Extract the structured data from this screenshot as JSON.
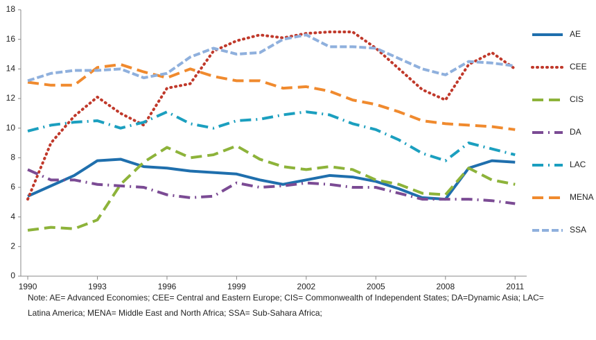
{
  "chart_data": {
    "type": "line",
    "x": [
      1990,
      1991,
      1992,
      1993,
      1994,
      1995,
      1996,
      1997,
      1998,
      1999,
      2000,
      2001,
      2002,
      2003,
      2004,
      2005,
      2006,
      2007,
      2008,
      2009,
      2010,
      2011
    ],
    "series": [
      {
        "name": "AE",
        "color": "#1f6fad",
        "dash": "solid",
        "values": [
          5.4,
          6.1,
          6.8,
          7.8,
          7.9,
          7.4,
          7.3,
          7.1,
          7.0,
          6.9,
          6.5,
          6.2,
          6.5,
          6.8,
          6.7,
          6.4,
          5.9,
          5.3,
          5.2,
          7.3,
          7.8,
          7.7
        ]
      },
      {
        "name": "CEE",
        "color": "#c0392b",
        "dash": "dotted",
        "values": [
          5.2,
          9.0,
          10.8,
          12.1,
          11.0,
          10.2,
          12.7,
          13.0,
          15.2,
          15.9,
          16.3,
          16.1,
          16.4,
          16.5,
          16.5,
          15.4,
          14.0,
          12.6,
          11.9,
          14.3,
          15.1,
          14.0
        ]
      },
      {
        "name": "CIS",
        "color": "#8db33a",
        "dash": "dashed",
        "values": [
          3.1,
          3.3,
          3.2,
          3.8,
          6.2,
          7.7,
          8.7,
          8.0,
          8.2,
          8.8,
          7.9,
          7.4,
          7.2,
          7.4,
          7.2,
          6.5,
          6.2,
          5.6,
          5.5,
          7.3,
          6.5,
          6.2
        ]
      },
      {
        "name": "DA",
        "color": "#7b4b94",
        "dash": "dashdot",
        "values": [
          7.2,
          6.5,
          6.5,
          6.2,
          6.1,
          6.0,
          5.5,
          5.3,
          5.4,
          6.3,
          6.0,
          6.1,
          6.3,
          6.2,
          6.0,
          6.0,
          5.6,
          5.2,
          5.2,
          5.2,
          5.1,
          4.9
        ]
      },
      {
        "name": "LAC",
        "color": "#1b9fbf",
        "dash": "dashdot",
        "values": [
          9.8,
          10.2,
          10.4,
          10.5,
          10.0,
          10.4,
          11.1,
          10.3,
          10.0,
          10.5,
          10.6,
          10.9,
          11.1,
          10.9,
          10.3,
          9.9,
          9.2,
          8.3,
          7.8,
          9.0,
          8.6,
          8.2
        ]
      },
      {
        "name": "MENA",
        "color": "#f08a2e",
        "dash": "dashed",
        "values": [
          13.1,
          12.9,
          12.9,
          14.1,
          14.3,
          13.8,
          13.4,
          14.0,
          13.5,
          13.2,
          13.2,
          12.7,
          12.8,
          12.5,
          11.9,
          11.6,
          11.1,
          10.5,
          10.3,
          10.2,
          10.1,
          9.9
        ]
      },
      {
        "name": "SSA",
        "color": "#8fb0dd",
        "dash": "shortdash",
        "values": [
          13.2,
          13.7,
          13.9,
          13.9,
          14.0,
          13.4,
          13.7,
          14.8,
          15.4,
          15.0,
          15.1,
          16.0,
          16.3,
          15.5,
          15.5,
          15.4,
          14.7,
          14.0,
          13.6,
          14.5,
          14.4,
          14.2
        ]
      }
    ],
    "xlim": [
      1989.7,
      2011.5
    ],
    "xticks": [
      1990,
      1993,
      1996,
      1999,
      2002,
      2005,
      2008,
      2011
    ],
    "ylim": [
      0,
      18
    ],
    "yticks": [
      0,
      2,
      4,
      6,
      8,
      10,
      12,
      14,
      16,
      18
    ],
    "grid": false,
    "legend": "right",
    "note": [
      "Note: AE= Advanced Economies; CEE= Central and Eastern Europe; CIS= Commonwealth of Independent States; DA=Dynamic Asia; LAC=",
      "Latina America; MENA= Middle East and North Africa; SSA= Sub-Sahara Africa;"
    ]
  }
}
